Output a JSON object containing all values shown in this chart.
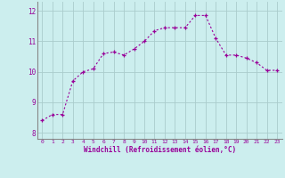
{
  "x": [
    0,
    1,
    2,
    3,
    4,
    5,
    6,
    7,
    8,
    9,
    10,
    11,
    12,
    13,
    14,
    15,
    16,
    17,
    18,
    19,
    20,
    21,
    22,
    23
  ],
  "y": [
    8.4,
    8.6,
    8.6,
    9.7,
    10.0,
    10.1,
    10.6,
    10.65,
    10.55,
    10.75,
    11.0,
    11.35,
    11.45,
    11.45,
    11.45,
    11.85,
    11.85,
    11.1,
    10.55,
    10.55,
    10.45,
    10.3,
    10.05,
    10.05
  ],
  "line_color": "#990099",
  "marker": "+",
  "bg_color": "#cceeee",
  "grid_color": "#aacccc",
  "xlabel": "Windchill (Refroidissement éolien,°C)",
  "xlabel_color": "#990099",
  "tick_color": "#990099",
  "ytick_labels": [
    "8",
    "9",
    "10",
    "11",
    "12"
  ],
  "ytick_vals": [
    8,
    9,
    10,
    11,
    12
  ],
  "xtick_vals": [
    0,
    1,
    2,
    3,
    4,
    5,
    6,
    7,
    8,
    9,
    10,
    11,
    12,
    13,
    14,
    15,
    16,
    17,
    18,
    19,
    20,
    21,
    22,
    23
  ],
  "ylim": [
    7.8,
    12.3
  ],
  "xlim": [
    -0.5,
    23.5
  ]
}
